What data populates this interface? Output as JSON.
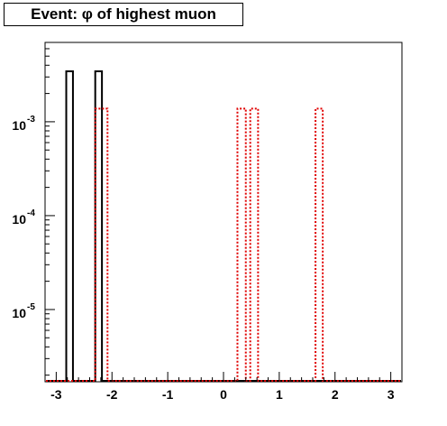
{
  "chart_data": {
    "type": "histogram",
    "title": "Event: φ of highest muon",
    "xlabel": "",
    "ylabel": "",
    "xlim": [
      -3.2,
      3.2
    ],
    "ylim": [
      1.7e-06,
      0.007
    ],
    "y_scale": "log",
    "grid": false,
    "x_ticks": [
      {
        "value": -3,
        "label": "-3"
      },
      {
        "value": -2,
        "label": "-2"
      },
      {
        "value": -1,
        "label": "-1"
      },
      {
        "value": 0,
        "label": "0"
      },
      {
        "value": 1,
        "label": "1"
      },
      {
        "value": 2,
        "label": "2"
      },
      {
        "value": 3,
        "label": "3"
      }
    ],
    "y_ticks": [
      {
        "value": 0.001,
        "label": "10",
        "exp": "-3"
      },
      {
        "value": 0.0001,
        "label": "10",
        "exp": "-4"
      },
      {
        "value": 1e-05,
        "label": "10",
        "exp": "-5"
      }
    ],
    "series": [
      {
        "style": "solid",
        "color": "#000000",
        "bins": [
          {
            "x0": -2.82,
            "x1": -2.7,
            "y": 0.00345
          },
          {
            "x0": -2.3,
            "x1": -2.18,
            "y": 0.00345
          }
        ]
      },
      {
        "style": "dotted",
        "color": "#e00000",
        "bins": [
          {
            "x0": -2.3,
            "x1": -2.08,
            "y": 0.00138
          },
          {
            "x0": 0.25,
            "x1": 0.4,
            "y": 0.00138
          },
          {
            "x0": 0.48,
            "x1": 0.62,
            "y": 0.00138
          },
          {
            "x0": 1.65,
            "x1": 1.78,
            "y": 0.00138
          }
        ]
      }
    ]
  }
}
